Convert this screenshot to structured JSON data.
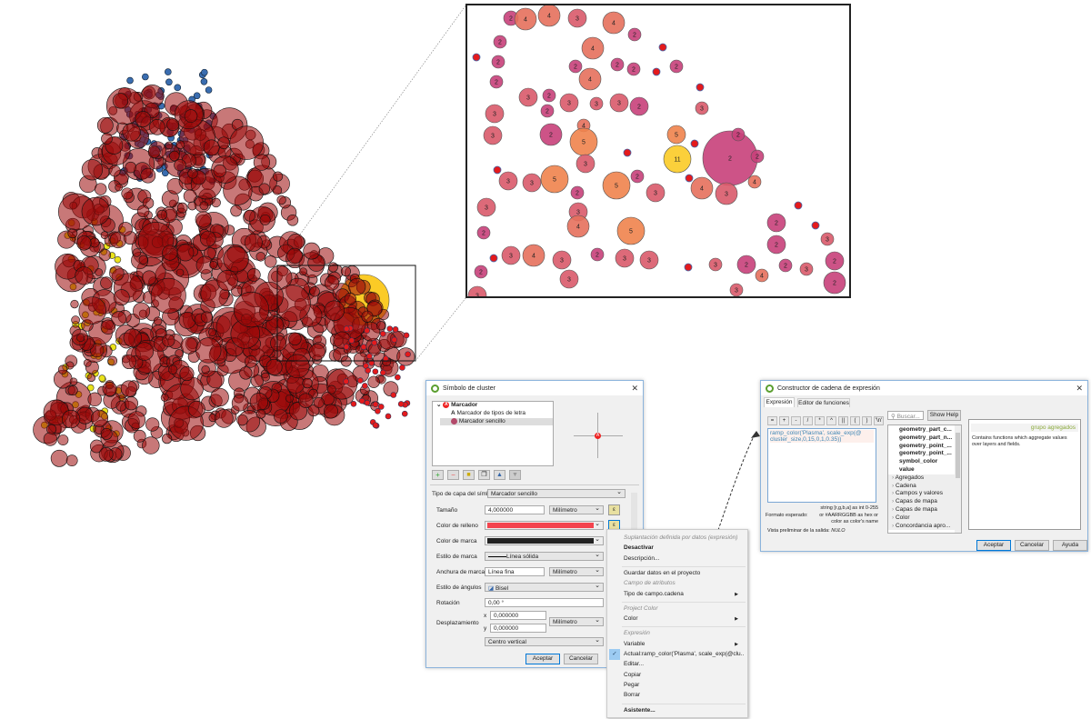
{
  "colors": {
    "cluster_2": "#c8407a",
    "cluster_3": "#d95a6a",
    "cluster_4": "#e6705c",
    "cluster_5": "#f0834d",
    "cluster_11": "#fbcb26",
    "single": "#e41a1c",
    "main_cluster": "#9a0a0a",
    "blue_points": "#3a6db0",
    "yellow_points": "#e9e21a"
  },
  "inset_clusters": [
    "2",
    "4",
    "4",
    "3",
    "4",
    "2",
    "2",
    "4",
    "2",
    "2",
    "4",
    "2",
    "2",
    "2",
    "3",
    "2",
    "3",
    "2",
    "3",
    "3",
    "2",
    "3",
    "3",
    "4",
    "2",
    "5",
    "3",
    "3",
    "3",
    "5",
    "5",
    "2",
    "3",
    "2",
    "3",
    "3",
    "4",
    "5",
    "2",
    "3",
    "4",
    "3",
    "2",
    "3",
    "3",
    "2",
    "3",
    "3",
    "2",
    "3",
    "5",
    "11",
    "2",
    "2",
    "2",
    "4",
    "4",
    "3",
    "2",
    "3",
    "2",
    "3",
    "2",
    "2",
    "3",
    "2",
    "4",
    "2",
    "3"
  ],
  "cluster_dialog": {
    "title": "Símbolo de cluster",
    "tree": {
      "root": "Marcador",
      "root_icon": "A",
      "items": [
        "Marcador de tipos de letra",
        "Marcador sencillo"
      ],
      "font_marker_icon": "A",
      "preview_icon": "A"
    },
    "tool_icons": [
      "add-layer-icon",
      "remove-layer-icon",
      "lock-icon",
      "duplicate-icon",
      "move-up-icon",
      "move-down-icon"
    ],
    "layer_type_label": "Tipo de capa del símbolo",
    "layer_type_value": "Marcador sencillo",
    "size_label": "Tamaño",
    "size_value": "4,000000",
    "size_unit": "Milímetro",
    "fill_label": "Color de relleno",
    "fill_color": "#f4444e",
    "stroke_color_label": "Color de marca",
    "stroke_color": "#222222",
    "stroke_style_label": "Estilo de marca",
    "stroke_style_value": "Línea sólida",
    "stroke_width_label": "Anchura de marca",
    "stroke_width_value": "Línea fina",
    "stroke_width_unit": "Milímetro",
    "join_label": "Estilo de ángulos",
    "join_value": "Bisel",
    "rotation_label": "Rotación",
    "rotation_value": "0,00 °",
    "offset_label": "Desplazamiento",
    "offset_x_label": "x",
    "offset_x": "0,000000",
    "offset_y_label": "y",
    "offset_y": "0,000000",
    "offset_unit": "Milímetro",
    "anchor_value": "Centro vertical",
    "ok": "Aceptar",
    "cancel": "Cancelar"
  },
  "context_menu": {
    "items": [
      {
        "label": "Suplantación definida por datos (expresión)",
        "type": "header"
      },
      {
        "label": "Desactivar",
        "type": "bold"
      },
      {
        "label": "Descripción...",
        "type": "item"
      },
      {
        "type": "separator"
      },
      {
        "label": "Guardar datos en el proyecto",
        "type": "item"
      },
      {
        "label": "Campo de atributos",
        "type": "header"
      },
      {
        "label": "Tipo de campo.cadena",
        "type": "submenu"
      },
      {
        "type": "separator"
      },
      {
        "label": "Project Color",
        "type": "header"
      },
      {
        "label": "Color",
        "type": "submenu"
      },
      {
        "type": "separator"
      },
      {
        "label": "Expresión",
        "type": "header"
      },
      {
        "label": "Variable",
        "type": "submenu"
      },
      {
        "label": "Actual:ramp_color('Plasma', scale_exp(@clu...",
        "type": "checked"
      },
      {
        "label": "Editar...",
        "type": "item"
      },
      {
        "label": "Copiar",
        "type": "item"
      },
      {
        "label": "Pegar",
        "type": "item"
      },
      {
        "label": "Borrar",
        "type": "item"
      },
      {
        "type": "separator"
      },
      {
        "label": "Asistente...",
        "type": "bold"
      }
    ]
  },
  "expression_dialog": {
    "title": "Constructor de cadena de expresión",
    "tabs": [
      "Expresión",
      "Editor de funciones"
    ],
    "operators": [
      "=",
      "+",
      "-",
      "/",
      "*",
      "^",
      "||",
      "(",
      ")",
      "'\\n'"
    ],
    "expression_part1": "ramp_color('Plasma', scale_exp(@",
    "expression_part2": "cluster_size,0,15,0,1,0.35))",
    "format_line1": "string [r,g,b,a] as int 0-255",
    "format_label": "Formato esperado:",
    "format_line2": "or #AARRGGBB as hex or",
    "format_line3": "color as color's name",
    "preview_label": "Vista preliminar de la salida:",
    "preview_value": "NULO",
    "search_placeholder": "Buscar...",
    "show_help": "Show Help",
    "function_list": [
      {
        "label": "geometry_part_c...",
        "bold": true
      },
      {
        "label": "geometry_part_n...",
        "bold": true
      },
      {
        "label": "geometry_point_...",
        "bold": true
      },
      {
        "label": "geometry_point_...",
        "bold": true
      },
      {
        "label": "symbol_color",
        "bold": true
      },
      {
        "label": "value",
        "bold": true
      },
      {
        "label": "Agregados",
        "group": true
      },
      {
        "label": "Cadena",
        "group": true
      },
      {
        "label": "Campos y valores",
        "group": true
      },
      {
        "label": "Capas de mapa",
        "group": true
      },
      {
        "label": "Capas de mapa",
        "group": true
      },
      {
        "label": "Color",
        "group": true
      },
      {
        "label": "Concordancia apro...",
        "group": true
      }
    ],
    "help_title": "grupo agregados",
    "help_text": "Contains functions which aggregate values over layers and fields.",
    "ok": "Aceptar",
    "cancel": "Cancelar",
    "help": "Ayuda"
  }
}
